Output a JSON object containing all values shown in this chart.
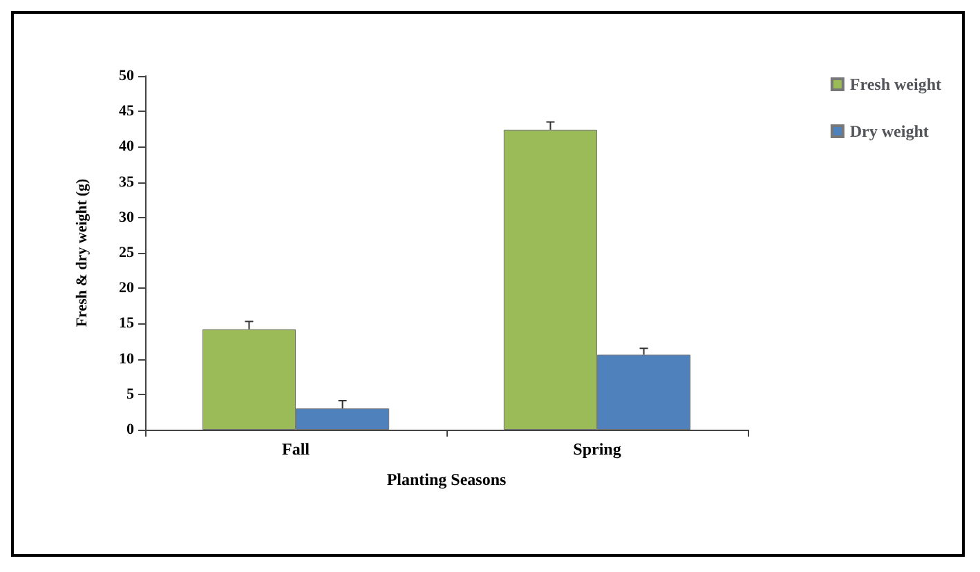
{
  "chart_data": {
    "type": "bar",
    "xlabel": "Planting Seasons",
    "ylabel": "Fresh & dry weight (g)",
    "categories": [
      "Fall",
      "Spring"
    ],
    "series": [
      {
        "name": "Fresh weight",
        "color": "#9bbb59",
        "values": [
          14.2,
          42.4
        ],
        "errors": [
          1.1,
          1.1
        ]
      },
      {
        "name": "Dry weight",
        "color": "#4f81bd",
        "values": [
          3.0,
          10.6
        ],
        "errors": [
          1.1,
          0.9
        ]
      }
    ],
    "ylim": [
      0,
      50
    ],
    "yticks": [
      0,
      5,
      10,
      15,
      20,
      25,
      30,
      35,
      40,
      45,
      50
    ],
    "grid": false,
    "legend": "top right"
  }
}
